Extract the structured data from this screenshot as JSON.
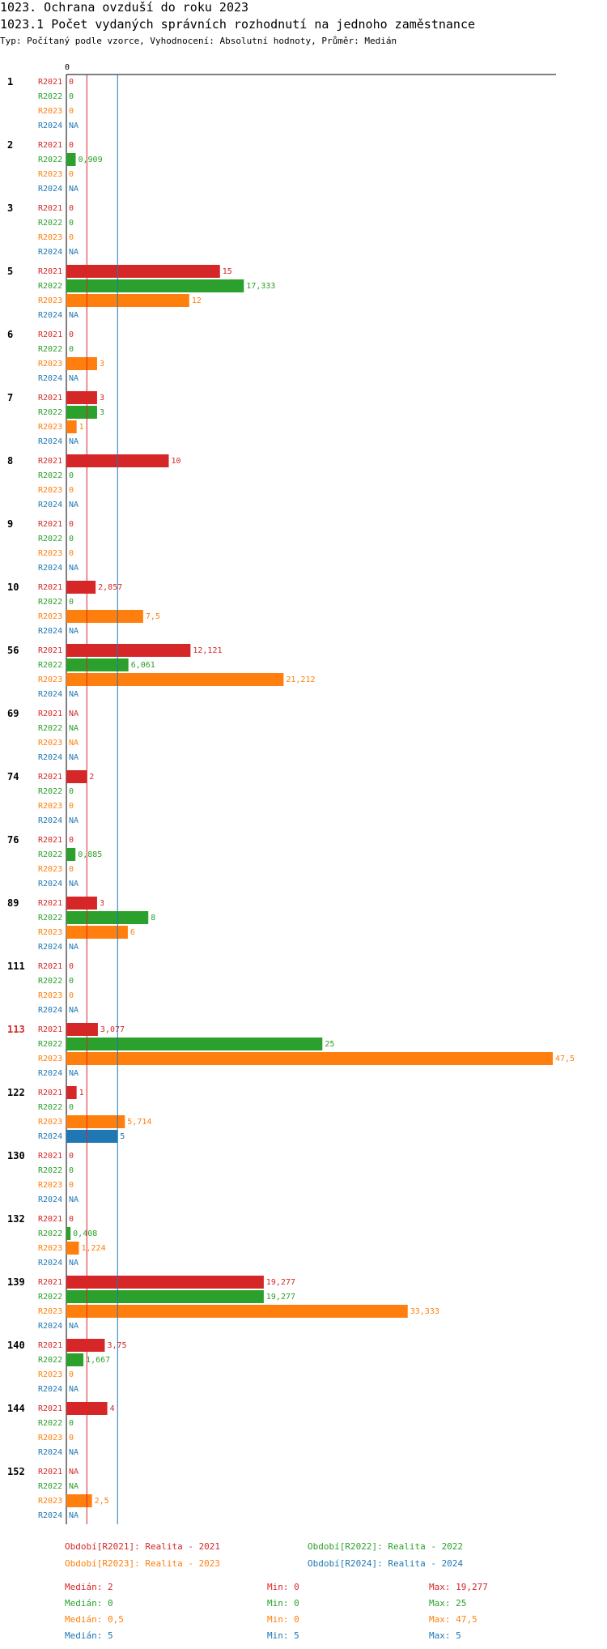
{
  "header": {
    "title": "1023. Ochrana ovzduší do roku 2023",
    "subtitle": "1023.1 Počet vydaných správních rozhodnutí na jednoho zaměstnance",
    "meta": "Typ: Počítaný podle vzorce, Vyhodnocení: Absolutní hodnoty, Průměr: Medián"
  },
  "colors": {
    "R2021": "#d62728",
    "R2022": "#2ca02c",
    "R2023": "#ff7f0e",
    "R2024": "#1f77b4"
  },
  "chart_data": {
    "type": "bar",
    "orientation": "horizontal",
    "axis_zero_label": "0",
    "xlim": [
      0,
      47.5
    ],
    "series_names": [
      "R2021",
      "R2022",
      "R2023",
      "R2024"
    ],
    "median_lines": {
      "R2021": 2,
      "R2024": 5
    },
    "groups": [
      {
        "label": "1",
        "values": [
          "0",
          "0",
          "0",
          "NA"
        ]
      },
      {
        "label": "2",
        "values": [
          "0",
          "0,909",
          "0",
          "NA"
        ]
      },
      {
        "label": "3",
        "values": [
          "0",
          "0",
          "0",
          "NA"
        ]
      },
      {
        "label": "5",
        "values": [
          "15",
          "17,333",
          "12",
          "NA"
        ]
      },
      {
        "label": "6",
        "values": [
          "0",
          "0",
          "3",
          "NA"
        ]
      },
      {
        "label": "7",
        "values": [
          "3",
          "3",
          "1",
          "NA"
        ]
      },
      {
        "label": "8",
        "values": [
          "10",
          "0",
          "0",
          "NA"
        ]
      },
      {
        "label": "9",
        "values": [
          "0",
          "0",
          "0",
          "NA"
        ]
      },
      {
        "label": "10",
        "values": [
          "2,857",
          "0",
          "7,5",
          "NA"
        ]
      },
      {
        "label": "56",
        "values": [
          "12,121",
          "6,061",
          "21,212",
          "NA"
        ]
      },
      {
        "label": "69",
        "values": [
          "NA",
          "NA",
          "NA",
          "NA"
        ]
      },
      {
        "label": "74",
        "values": [
          "2",
          "0",
          "0",
          "NA"
        ]
      },
      {
        "label": "76",
        "values": [
          "0",
          "0,885",
          "0",
          "NA"
        ]
      },
      {
        "label": "89",
        "values": [
          "3",
          "8",
          "6",
          "NA"
        ]
      },
      {
        "label": "111",
        "values": [
          "0",
          "0",
          "0",
          "NA"
        ]
      },
      {
        "label": "113",
        "values": [
          "3,077",
          "25",
          "47,5",
          "NA"
        ],
        "highlight": true
      },
      {
        "label": "122",
        "values": [
          "1",
          "0",
          "5,714",
          "5"
        ]
      },
      {
        "label": "130",
        "values": [
          "0",
          "0",
          "0",
          "NA"
        ]
      },
      {
        "label": "132",
        "values": [
          "0",
          "0,408",
          "1,224",
          "NA"
        ]
      },
      {
        "label": "139",
        "values": [
          "19,277",
          "19,277",
          "33,333",
          "NA"
        ]
      },
      {
        "label": "140",
        "values": [
          "3,75",
          "1,667",
          "0",
          "NA"
        ]
      },
      {
        "label": "144",
        "values": [
          "4",
          "0",
          "0",
          "NA"
        ]
      },
      {
        "label": "152",
        "values": [
          "NA",
          "NA",
          "2,5",
          "NA"
        ]
      }
    ]
  },
  "legend": [
    {
      "key": "R2021",
      "text": "Období[R2021]: Realita - 2021"
    },
    {
      "key": "R2022",
      "text": "Období[R2022]: Realita - 2022"
    },
    {
      "key": "R2023",
      "text": "Období[R2023]: Realita - 2023"
    },
    {
      "key": "R2024",
      "text": "Období[R2024]: Realita - 2024"
    }
  ],
  "stats": [
    {
      "key": "R2021",
      "median": "Medián: 2",
      "min": "Min: 0",
      "max": "Max: 19,277"
    },
    {
      "key": "R2022",
      "median": "Medián: 0",
      "min": "Min: 0",
      "max": "Max: 25"
    },
    {
      "key": "R2023",
      "median": "Medián: 0,5",
      "min": "Min: 0",
      "max": "Max: 47,5"
    },
    {
      "key": "R2024",
      "median": "Medián: 5",
      "min": "Min: 5",
      "max": "Max: 5"
    }
  ]
}
